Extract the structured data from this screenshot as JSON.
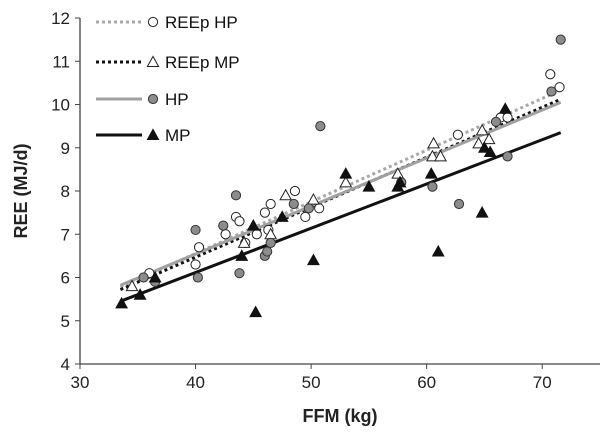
{
  "chart_data": {
    "type": "scatter",
    "xlabel": "FFM (kg)",
    "ylabel": "REE (MJ/d)",
    "xlim": [
      30,
      75
    ],
    "ylim": [
      4,
      12
    ],
    "x_ticks": [
      30,
      40,
      50,
      60,
      70
    ],
    "y_ticks": [
      4,
      5,
      6,
      7,
      8,
      9,
      10,
      11,
      12
    ],
    "grid": false,
    "legend_position": "top-left",
    "series": [
      {
        "name": "REEp HP",
        "kind": "points",
        "marker": "circle-open",
        "color": "#222222",
        "points": [
          [
            36.0,
            6.1
          ],
          [
            40.0,
            6.3
          ],
          [
            40.3,
            6.7
          ],
          [
            42.6,
            7.0
          ],
          [
            43.5,
            7.4
          ],
          [
            43.8,
            7.3
          ],
          [
            44.3,
            6.8
          ],
          [
            45.3,
            7.0
          ],
          [
            46.0,
            7.5
          ],
          [
            46.3,
            7.1
          ],
          [
            46.5,
            7.7
          ],
          [
            48.6,
            8.0
          ],
          [
            49.5,
            7.4
          ],
          [
            50.7,
            7.6
          ],
          [
            62.7,
            9.3
          ],
          [
            66.4,
            9.7
          ],
          [
            67.0,
            9.7
          ],
          [
            70.7,
            10.7
          ],
          [
            71.5,
            10.4
          ]
        ]
      },
      {
        "name": "REEp MP",
        "kind": "points",
        "marker": "triangle-open",
        "color": "#222222",
        "points": [
          [
            34.5,
            5.8
          ],
          [
            44.2,
            6.8
          ],
          [
            46.5,
            7.0
          ],
          [
            47.8,
            7.9
          ],
          [
            50.2,
            7.8
          ],
          [
            53.0,
            8.2
          ],
          [
            57.5,
            8.4
          ],
          [
            60.5,
            8.8
          ],
          [
            60.6,
            9.1
          ],
          [
            61.2,
            8.8
          ],
          [
            64.5,
            9.1
          ],
          [
            64.8,
            9.4
          ],
          [
            65.4,
            9.2
          ]
        ]
      },
      {
        "name": "HP",
        "kind": "points",
        "marker": "circle-filled",
        "color": "#8c8c8c",
        "points": [
          [
            35.5,
            6.0
          ],
          [
            36.5,
            5.9
          ],
          [
            40.0,
            7.1
          ],
          [
            40.2,
            6.0
          ],
          [
            42.4,
            7.2
          ],
          [
            43.5,
            7.9
          ],
          [
            43.8,
            6.1
          ],
          [
            46.0,
            6.5
          ],
          [
            46.2,
            6.6
          ],
          [
            46.5,
            6.8
          ],
          [
            48.5,
            7.7
          ],
          [
            49.8,
            7.6
          ],
          [
            50.8,
            9.5
          ],
          [
            57.8,
            8.2
          ],
          [
            60.5,
            8.1
          ],
          [
            62.8,
            7.7
          ],
          [
            66.0,
            9.6
          ],
          [
            67.0,
            8.8
          ],
          [
            70.8,
            10.3
          ],
          [
            71.6,
            11.5
          ]
        ]
      },
      {
        "name": "MP",
        "kind": "points",
        "marker": "triangle-filled",
        "color": "#111111",
        "points": [
          [
            33.6,
            5.4
          ],
          [
            35.2,
            5.6
          ],
          [
            36.5,
            6.0
          ],
          [
            44.0,
            6.5
          ],
          [
            45.0,
            7.2
          ],
          [
            45.2,
            5.2
          ],
          [
            47.5,
            7.4
          ],
          [
            50.2,
            6.4
          ],
          [
            53.0,
            8.4
          ],
          [
            55.0,
            8.1
          ],
          [
            57.5,
            8.1
          ],
          [
            57.7,
            8.2
          ],
          [
            60.4,
            8.4
          ],
          [
            61.0,
            6.6
          ],
          [
            64.8,
            7.5
          ],
          [
            65.0,
            9.0
          ],
          [
            65.5,
            8.9
          ],
          [
            66.8,
            9.9
          ]
        ]
      },
      {
        "name": "REEp HP",
        "kind": "trend",
        "style": "dotted",
        "color": "#a8a8a8",
        "points": [
          [
            33.5,
            5.78
          ],
          [
            71.6,
            10.33
          ]
        ]
      },
      {
        "name": "REEp MP",
        "kind": "trend",
        "style": "dotted",
        "color": "#111111",
        "points": [
          [
            33.5,
            5.72
          ],
          [
            71.6,
            10.12
          ]
        ]
      },
      {
        "name": "HP",
        "kind": "trend",
        "style": "solid",
        "color": "#a0a0a0",
        "points": [
          [
            33.5,
            5.82
          ],
          [
            71.6,
            10.05
          ]
        ]
      },
      {
        "name": "MP",
        "kind": "trend",
        "style": "solid",
        "color": "#111111",
        "points": [
          [
            33.5,
            5.45
          ],
          [
            71.6,
            9.35
          ]
        ]
      }
    ],
    "legend": [
      {
        "label": "REEp HP",
        "line": "dotted",
        "line_color": "#a8a8a8",
        "marker": "circle-open",
        "marker_color": "#222222"
      },
      {
        "label": "REEp MP",
        "line": "dotted",
        "line_color": "#111111",
        "marker": "triangle-open",
        "marker_color": "#222222"
      },
      {
        "label": "HP",
        "line": "solid",
        "line_color": "#a0a0a0",
        "marker": "circle-filled",
        "marker_color": "#8c8c8c"
      },
      {
        "label": "MP",
        "line": "solid",
        "line_color": "#111111",
        "marker": "triangle-filled",
        "marker_color": "#111111"
      }
    ]
  }
}
